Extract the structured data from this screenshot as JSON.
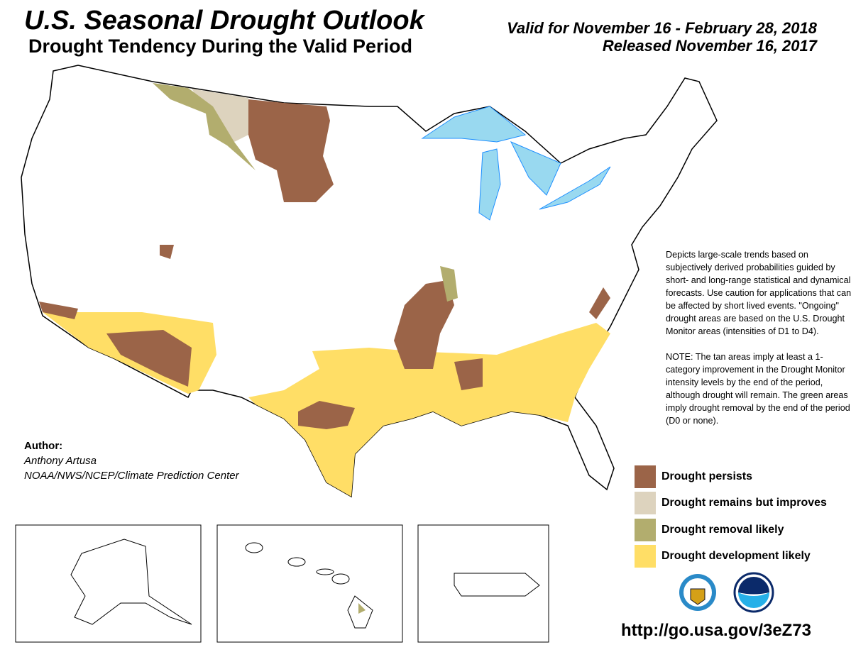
{
  "header": {
    "title": "U.S. Seasonal Drought Outlook",
    "subtitle": "Drought Tendency During the Valid Period",
    "valid": "Valid for November 16 - February 28, 2018",
    "released": "Released November 16, 2017"
  },
  "notes": {
    "p1": "Depicts large-scale trends based on subjectively derived probabilities guided by short- and long-range statistical and dynamical forecasts. Use caution for applications that can be affected by short lived events. \"Ongoing\" drought areas are based on the U.S. Drought Monitor areas (intensities of D1 to D4).",
    "p2": "NOTE: The tan areas imply at least a 1-category improvement in the Drought Monitor intensity levels by the end of the period, although drought will remain. The green areas imply drought removal by the end of the period (D0 or none)."
  },
  "author": {
    "heading": "Author:",
    "name": "Anthony Artusa",
    "org": "NOAA/NWS/NCEP/Climate Prediction Center"
  },
  "legend": [
    {
      "label": "Drought persists",
      "color": "#9b6448"
    },
    {
      "label": "Drought remains but improves",
      "color": "#ddd3be"
    },
    {
      "label": "Drought removal likely",
      "color": "#b2ad6e"
    },
    {
      "label": "Drought development likely",
      "color": "#ffde66"
    }
  ],
  "colors": {
    "water": "#99d9f0",
    "rivers": "#1e8fff",
    "border": "#000000"
  },
  "logos": [
    "department-of-commerce-seal",
    "noaa-logo"
  ],
  "url": "http://go.usa.gov/3eZ73"
}
